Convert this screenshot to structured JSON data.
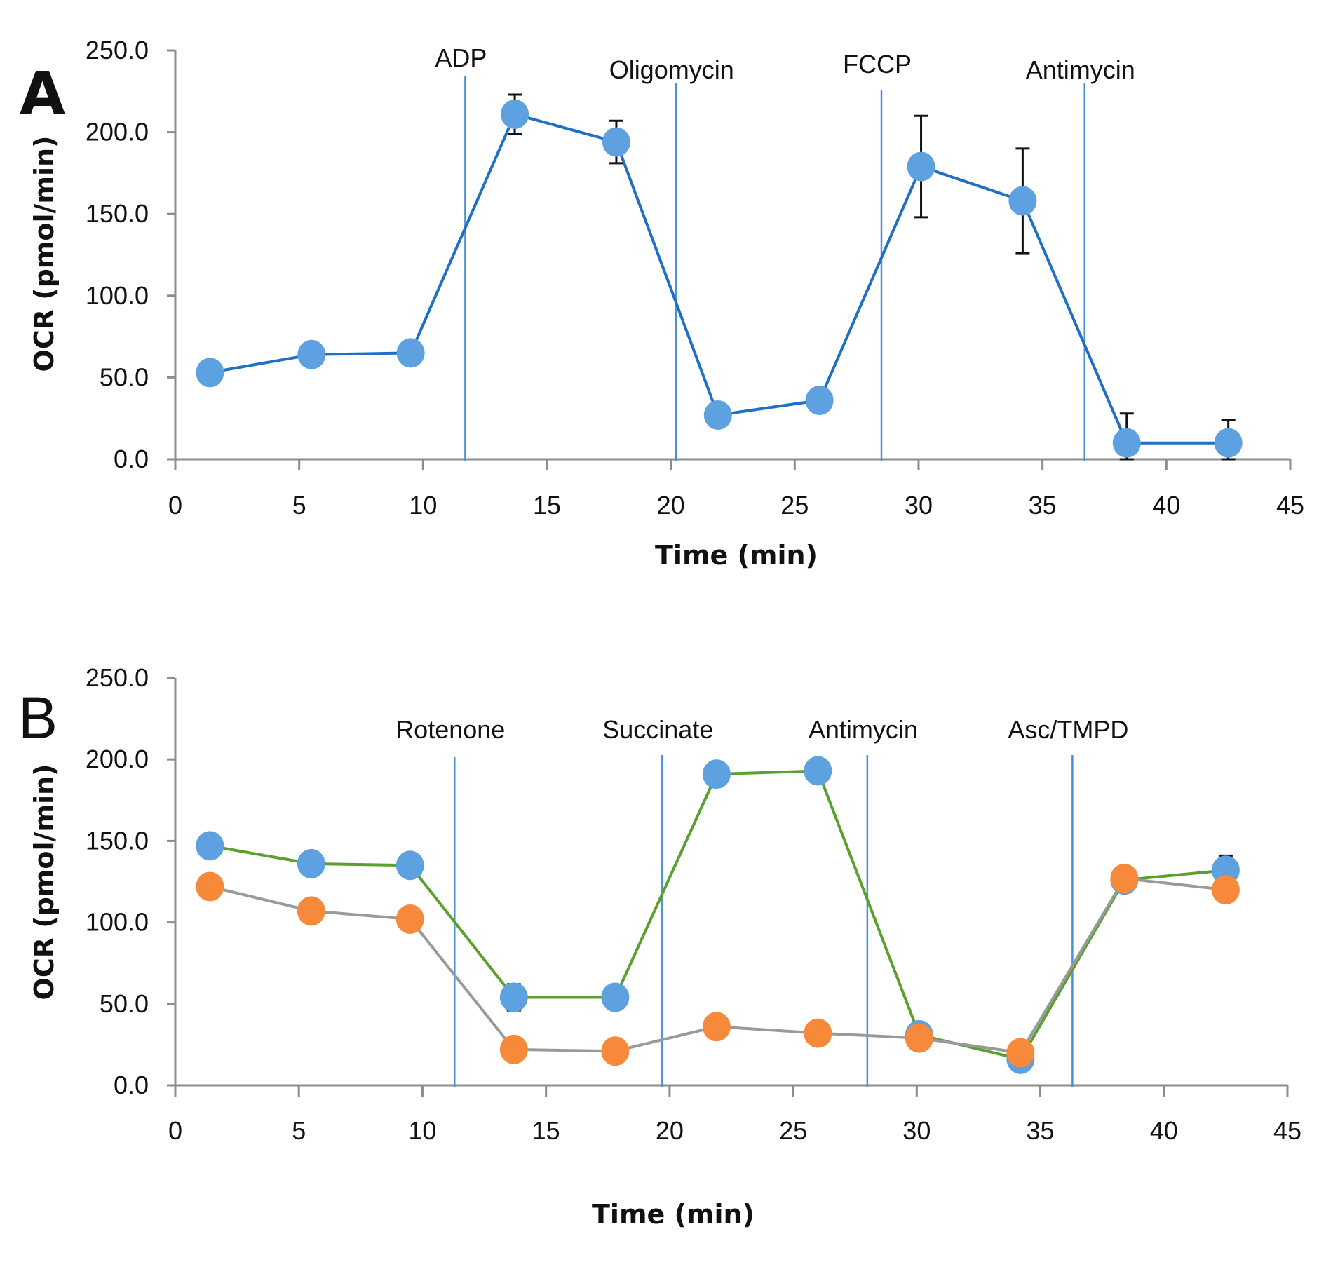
{
  "chart_data": [
    {
      "panel": "A",
      "type": "line",
      "title": "",
      "xlabel": "Time (min)",
      "ylabel": "OCR (pmol/min)",
      "xlim": [
        0,
        45
      ],
      "ylim": [
        0,
        250
      ],
      "x_ticks": [
        "0",
        "5",
        "10",
        "15",
        "20",
        "25",
        "30",
        "35",
        "40",
        "45"
      ],
      "y_ticks": [
        "0.0",
        "50.0",
        "100.0",
        "150.0",
        "200.0",
        "250.0"
      ],
      "grid": false,
      "legend": "none",
      "treatments": [
        {
          "label": "ADP",
          "x": 11.7
        },
        {
          "label": "Oligomycin",
          "x": 20.2
        },
        {
          "label": "FCCP",
          "x": 28.5
        },
        {
          "label": "Antimycin",
          "x": 36.7
        }
      ],
      "series": [
        {
          "name": "OCR",
          "marker_color": "#5da1e1",
          "line_color": "#1f6fc5",
          "x": [
            1.4,
            5.5,
            9.5,
            13.7,
            17.8,
            21.9,
            26.0,
            30.1,
            34.2,
            38.4,
            42.5
          ],
          "y": [
            53,
            64,
            65,
            211,
            194,
            27,
            36,
            179,
            158,
            10,
            10
          ],
          "error": [
            0,
            0,
            0,
            12,
            13,
            0,
            0,
            31,
            32,
            18,
            14
          ]
        }
      ]
    },
    {
      "panel": "B",
      "type": "line",
      "title": "",
      "xlabel": "Time (min)",
      "ylabel": "OCR (pmol/min)",
      "xlim": [
        0,
        45
      ],
      "ylim": [
        0,
        250
      ],
      "x_ticks": [
        "0",
        "5",
        "10",
        "15",
        "20",
        "25",
        "30",
        "35",
        "40",
        "45"
      ],
      "y_ticks": [
        "0.0",
        "50.0",
        "100.0",
        "150.0",
        "200.0",
        "250.0"
      ],
      "grid": false,
      "legend": "none",
      "treatments": [
        {
          "label": "Rotenone",
          "x": 11.3
        },
        {
          "label": "Succinate",
          "x": 19.7
        },
        {
          "label": "Antimycin",
          "x": 28.0
        },
        {
          "label": "Asc/TMPD",
          "x": 36.3
        }
      ],
      "series": [
        {
          "name": "blue-series",
          "marker_color": "#5da1e1",
          "line_color": "#5aa02c",
          "x": [
            1.4,
            5.5,
            9.5,
            13.7,
            17.8,
            21.9,
            26.0,
            30.1,
            34.2,
            38.4,
            42.5
          ],
          "y": [
            147,
            136,
            135,
            54,
            54,
            191,
            193,
            31,
            16,
            126,
            132
          ],
          "error": [
            0,
            0,
            0,
            8,
            0,
            0,
            0,
            0,
            0,
            0,
            9
          ]
        },
        {
          "name": "orange-series",
          "marker_color": "#f7893a",
          "line_color": "#9a9a9a",
          "x": [
            1.4,
            5.5,
            9.5,
            13.7,
            17.8,
            21.9,
            26.0,
            30.1,
            34.2,
            38.4,
            42.5
          ],
          "y": [
            122,
            107,
            102,
            22,
            21,
            36,
            32,
            29,
            20,
            127,
            120
          ],
          "error": [
            0,
            0,
            0,
            0,
            0,
            0,
            0,
            0,
            0,
            0,
            0
          ]
        }
      ]
    }
  ],
  "panels": {
    "a_letter": "A",
    "b_letter": "B"
  },
  "colors": {
    "axis": "#8c8c8c",
    "treatment_line": "#4a90d9",
    "error_bar": "#111111"
  }
}
